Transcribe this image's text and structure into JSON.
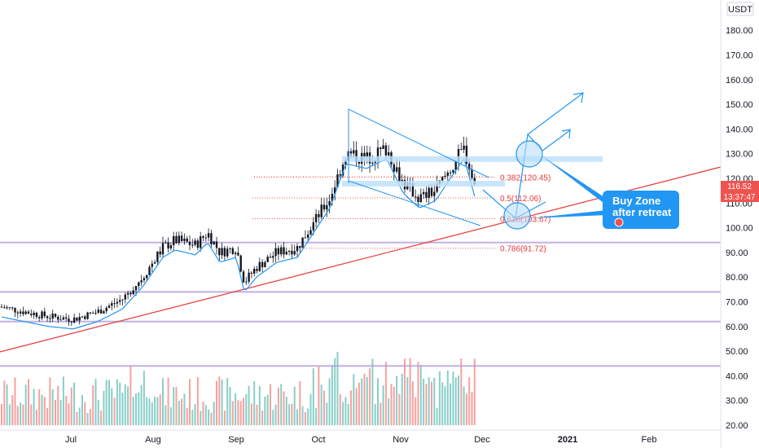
{
  "chart_data": {
    "type": "candlestick",
    "currency_label": "USDT",
    "y_ticks": [
      "180.00",
      "170.00",
      "160.00",
      "150.00",
      "140.00",
      "130.00",
      "120.00",
      "110.00",
      "100.00",
      "90.00",
      "80.00",
      "70.00",
      "60.00",
      "50.00",
      "40.00",
      "30.00",
      "20.00"
    ],
    "x_labels": [
      "Jul",
      "Aug",
      "Sep",
      "Oct",
      "Nov",
      "Dec",
      "2021",
      "Feb"
    ],
    "ylim": [
      18,
      190
    ],
    "price_tag": {
      "value": "116.52",
      "countdown": "13:37:47",
      "color": "#ef5350"
    },
    "fib_levels": [
      {
        "label": "0.382(120.45)",
        "value": 120.45
      },
      {
        "label": "0.5(112.06)",
        "value": 112.06
      },
      {
        "label": "0.618(103.67)",
        "value": 103.67
      },
      {
        "label": "0.786(91.72)",
        "value": 91.72
      }
    ],
    "horizontal_levels": [
      94,
      74,
      62,
      44
    ],
    "callout": {
      "line1": "Buy Zone",
      "line2": "after retreat"
    },
    "colors": {
      "up": "#26a69a",
      "down": "#ef5350",
      "ma": "#2196f3",
      "trend": "#e53935",
      "level": "#b39ddb",
      "drawing": "#2196f3",
      "zone": "#bbdefb"
    },
    "ohlc_anchors": [
      {
        "x": 0,
        "close": 68
      },
      {
        "x": 30,
        "close": 66
      },
      {
        "x": 60,
        "close": 64
      },
      {
        "x": 90,
        "close": 63
      },
      {
        "x": 120,
        "close": 66
      },
      {
        "x": 150,
        "close": 71
      },
      {
        "x": 175,
        "close": 80
      },
      {
        "x": 200,
        "close": 92
      },
      {
        "x": 215,
        "close": 95
      },
      {
        "x": 240,
        "close": 93
      },
      {
        "x": 255,
        "close": 98
      },
      {
        "x": 270,
        "close": 90
      },
      {
        "x": 290,
        "close": 92
      },
      {
        "x": 300,
        "close": 78
      },
      {
        "x": 315,
        "close": 84
      },
      {
        "x": 340,
        "close": 90
      },
      {
        "x": 365,
        "close": 92
      },
      {
        "x": 385,
        "close": 102
      },
      {
        "x": 405,
        "close": 112
      },
      {
        "x": 425,
        "close": 130
      },
      {
        "x": 450,
        "close": 128
      },
      {
        "x": 475,
        "close": 132
      },
      {
        "x": 495,
        "close": 118
      },
      {
        "x": 515,
        "close": 112
      },
      {
        "x": 535,
        "close": 115
      },
      {
        "x": 555,
        "close": 125
      },
      {
        "x": 570,
        "close": 132
      },
      {
        "x": 583,
        "close": 116.5
      }
    ]
  }
}
